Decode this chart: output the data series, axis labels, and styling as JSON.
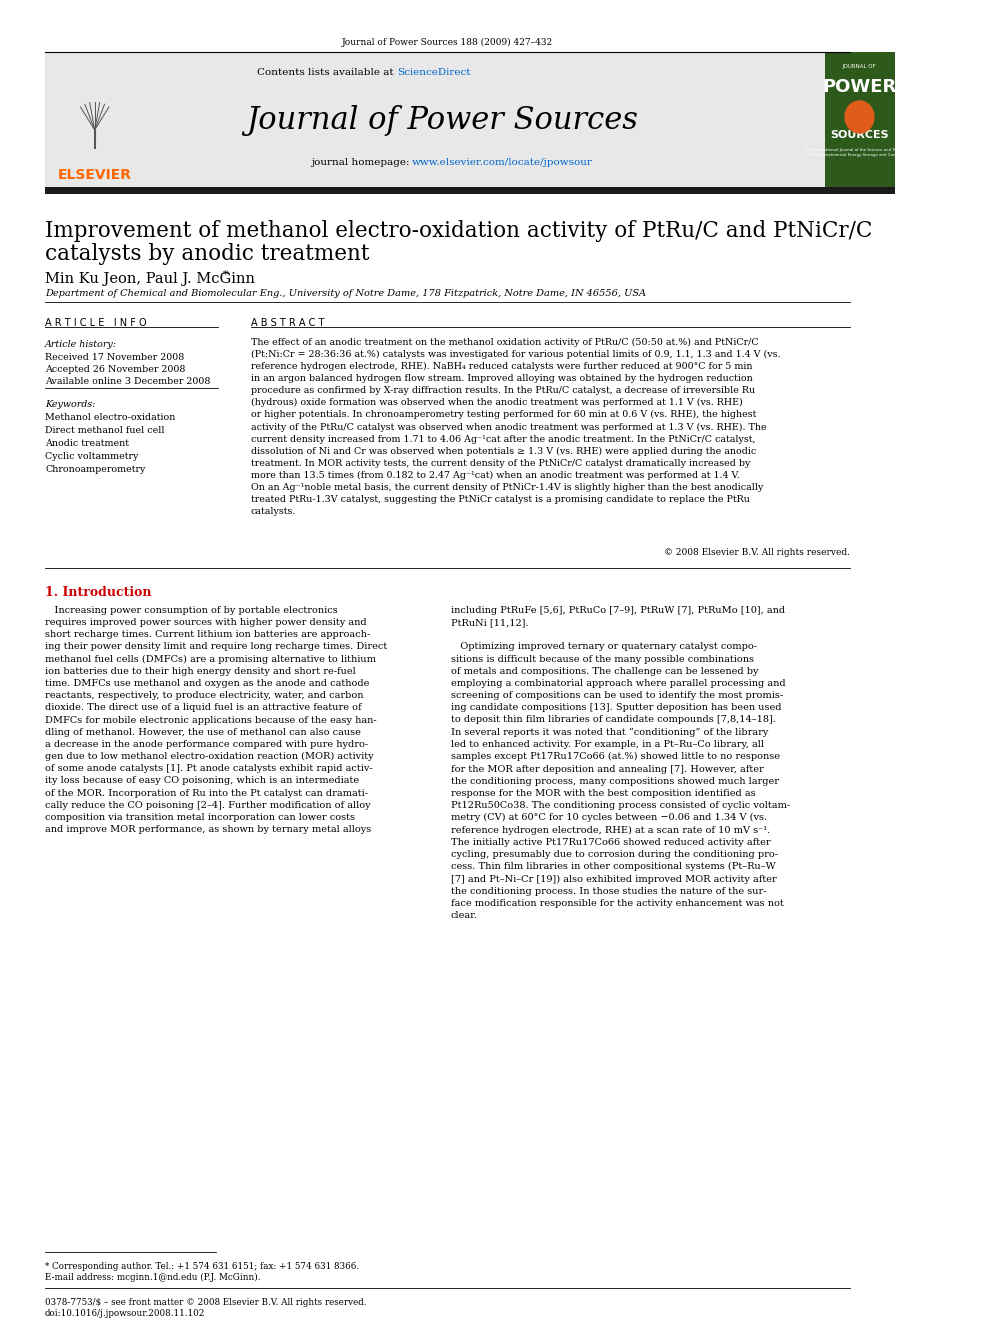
{
  "journal_ref": "Journal of Power Sources 188 (2009) 427–432",
  "sciencedirect_color": "#0066cc",
  "journal_name": "Journal of Power Sources",
  "homepage_color": "#0066cc",
  "header_bg": "#e8e8e8",
  "dark_bar_color": "#1a1a1a",
  "title_line1": "Improvement of methanol electro-oxidation activity of PtRu/C and PtNiCr/C",
  "title_line2": "catalysts by anodic treatment",
  "authors": "Min Ku Jeon, Paul J. McGinn",
  "affiliation": "Department of Chemical and Biomolecular Eng., University of Notre Dame, 178 Fitzpatrick, Notre Dame, IN 46556, USA",
  "article_info_title": "A R T I C L E   I N F O",
  "abstract_title": "A B S T R A C T",
  "article_history_label": "Article history:",
  "received": "Received 17 November 2008",
  "accepted": "Accepted 26 November 2008",
  "available": "Available online 3 December 2008",
  "keywords_label": "Keywords:",
  "keywords": [
    "Methanol electro-oxidation",
    "Direct methanol fuel cell",
    "Anodic treatment",
    "Cyclic voltammetry",
    "Chronoamperometry"
  ],
  "copyright": "© 2008 Elsevier B.V. All rights reserved.",
  "intro_title": "1. Introduction",
  "footnote_line1": "* Corresponding author. Tel.: +1 574 631 6151; fax: +1 574 631 8366.",
  "footnote_line2": "E-mail address: mcginn.1@nd.edu (P.J. McGinn).",
  "footer_line1": "0378-7753/$ – see front matter © 2008 Elsevier B.V. All rights reserved.",
  "footer_line2": "doi:10.1016/j.jpowsour.2008.11.102",
  "elsevier_color": "#ff6600",
  "intro_color": "#cc0000",
  "logo_green": "#2d5a1b",
  "logo_orange": "#e05c1a"
}
